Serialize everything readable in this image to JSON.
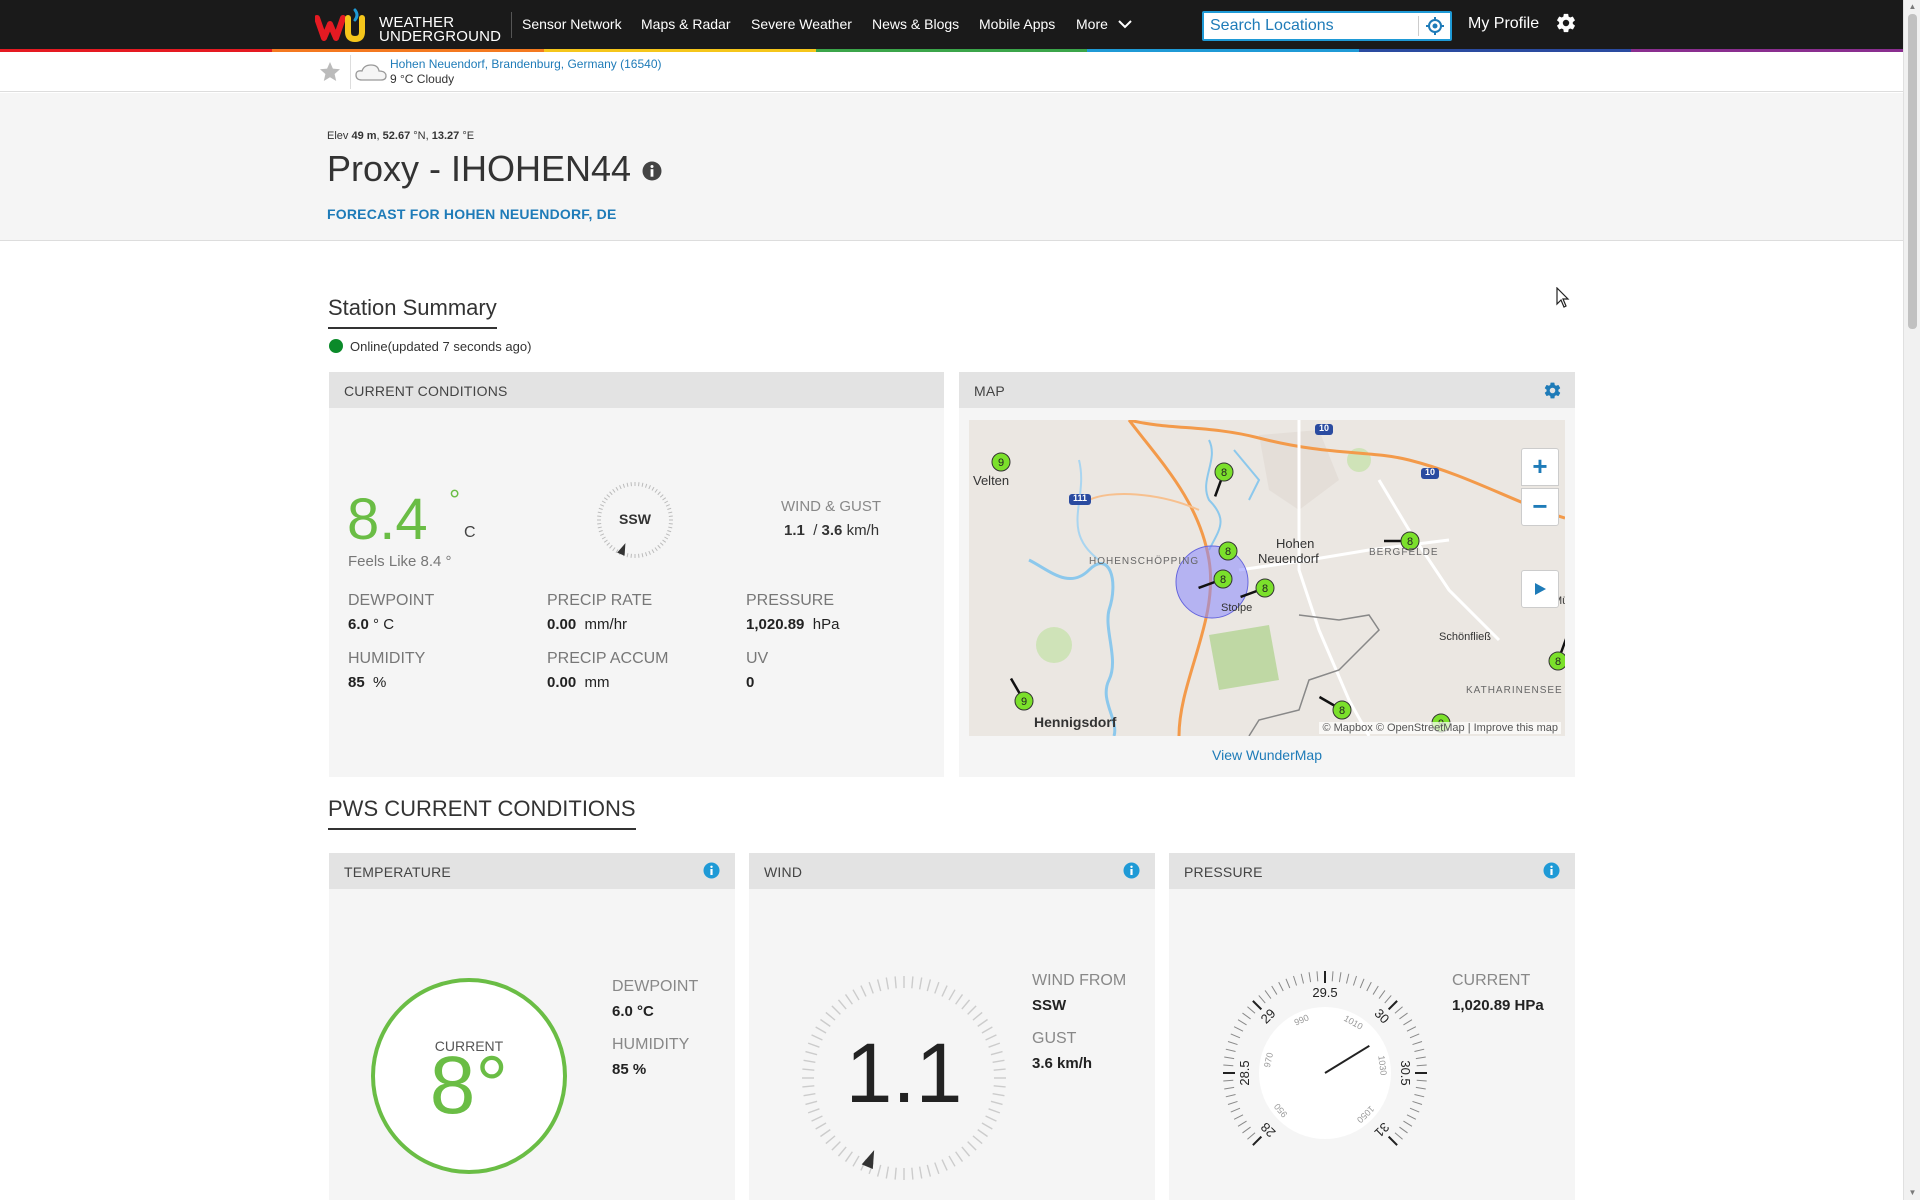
{
  "nav": {
    "logo_line1": "WEATHER",
    "logo_line2": "UNDERGROUND",
    "items": [
      "Sensor Network",
      "Maps & Radar",
      "Severe Weather",
      "News & Blogs",
      "Mobile Apps",
      "More"
    ],
    "search_placeholder": "Search Locations",
    "profile_label": "My Profile"
  },
  "rainbow_colors": [
    "#e51a22",
    "#f47920",
    "#f5c61b",
    "#3ba54a",
    "#1f9ad6",
    "#2a4ba0",
    "#8a2e8f"
  ],
  "location_bar": {
    "name": "Hohen Neuendorf, Brandenburg, Germany (16540)",
    "condition": "9 °C Cloudy"
  },
  "station": {
    "elev_label": "Elev",
    "elev_value": "49 m",
    "lat": "52.67",
    "lat_suffix": "°N,",
    "lon": "13.27",
    "lon_suffix": "°E",
    "title": "Proxy - IHOHEN44",
    "forecast_link": "FORECAST FOR HOHEN NEUENDORF, DE"
  },
  "summary": {
    "heading": "Station Summary",
    "online_status": "Online(updated 7 seconds ago)"
  },
  "current_conditions": {
    "title": "CURRENT CONDITIONS",
    "temp": "8.4",
    "deg": "°",
    "unit": "C",
    "feels_like": "Feels Like 8.4 °",
    "wind_dir": "SSW",
    "wind_label": "WIND & GUST",
    "wind_speed": "1.1",
    "wind_gust": "3.6",
    "wind_unit": "km/h",
    "dewpoint_label": "DEWPOINT",
    "dewpoint_value": "6.0",
    "dewpoint_unit": "° C",
    "humidity_label": "HUMIDITY",
    "humidity_value": "85",
    "humidity_unit": "%",
    "precip_rate_label": "PRECIP RATE",
    "precip_rate_value": "0.00",
    "precip_rate_unit": "mm/hr",
    "precip_accum_label": "PRECIP ACCUM",
    "precip_accum_value": "0.00",
    "precip_accum_unit": "mm",
    "pressure_label": "PRESSURE",
    "pressure_value": "1,020.89",
    "pressure_unit": "hPa",
    "uv_label": "UV",
    "uv_value": "0"
  },
  "map": {
    "title": "MAP",
    "places": [
      "Velten",
      "Hohen",
      "Neuendorf",
      "HOHENSCHÖPPING",
      "BERGFELDE",
      "Stolpe",
      "Schönfließ",
      "KATHARINENSEE",
      "Hennigsdorf",
      "Mü"
    ],
    "roads": [
      "10",
      "10",
      "111"
    ],
    "zoom_in": "+",
    "zoom_out": "−",
    "attribution": "© Mapbox © OpenStreetMap | Improve this map",
    "view_link": "View WunderMap",
    "station_markers": [
      "9",
      "8",
      "8",
      "8",
      "8",
      "8",
      "8",
      "9",
      "8",
      "9"
    ]
  },
  "pws": {
    "heading": "PWS CURRENT CONDITIONS",
    "temperature": {
      "title": "TEMPERATURE",
      "current_label": "CURRENT",
      "current_value": "8°",
      "dewpoint_label": "DEWPOINT",
      "dewpoint_value": "6.0 °C",
      "humidity_label": "HUMIDITY",
      "humidity_value": "85 %"
    },
    "wind": {
      "title": "WIND",
      "speed": "1.1",
      "from_label": "WIND FROM",
      "from_value": "SSW",
      "gust_label": "GUST",
      "gust_value": "3.6 km/h"
    },
    "pressure": {
      "title": "PRESSURE",
      "current_label": "CURRENT",
      "current_value": "1,020.89 HPa",
      "inhg_ticks": [
        "28",
        "28.5",
        "29",
        "29.5",
        "30",
        "30.5",
        "31"
      ],
      "hpa_ticks": [
        "950",
        "970",
        "990",
        "1010",
        "1030",
        "1050"
      ],
      "current_inhg": 30.15
    }
  }
}
